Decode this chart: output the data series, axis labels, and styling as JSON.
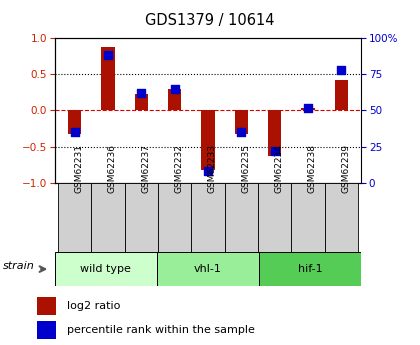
{
  "title": "GDS1379 / 10614",
  "samples": [
    "GSM62231",
    "GSM62236",
    "GSM62237",
    "GSM62232",
    "GSM62233",
    "GSM62235",
    "GSM62234",
    "GSM62238",
    "GSM62239"
  ],
  "log2_ratio": [
    -0.32,
    0.87,
    0.22,
    0.3,
    -0.82,
    -0.32,
    -0.63,
    0.04,
    0.42
  ],
  "percentile_rank": [
    35,
    88,
    62,
    65,
    8,
    35,
    22,
    52,
    78
  ],
  "groups": [
    {
      "label": "wild type",
      "start": 0,
      "end": 3,
      "color": "#ccffcc"
    },
    {
      "label": "vhl-1",
      "start": 3,
      "end": 6,
      "color": "#99ee99"
    },
    {
      "label": "hif-1",
      "start": 6,
      "end": 9,
      "color": "#55cc55"
    }
  ],
  "bar_color": "#aa1100",
  "dot_color": "#0000cc",
  "ylim_left": [
    -1,
    1
  ],
  "ylim_right": [
    0,
    100
  ],
  "yticks_left": [
    -1,
    -0.5,
    0,
    0.5,
    1
  ],
  "yticks_right": [
    0,
    25,
    50,
    75,
    100
  ],
  "hline_values": [
    -0.5,
    0,
    0.5
  ],
  "bar_width": 0.4,
  "dot_size": 40,
  "strain_label": "strain",
  "legend_red": "log2 ratio",
  "legend_blue": "percentile rank within the sample"
}
